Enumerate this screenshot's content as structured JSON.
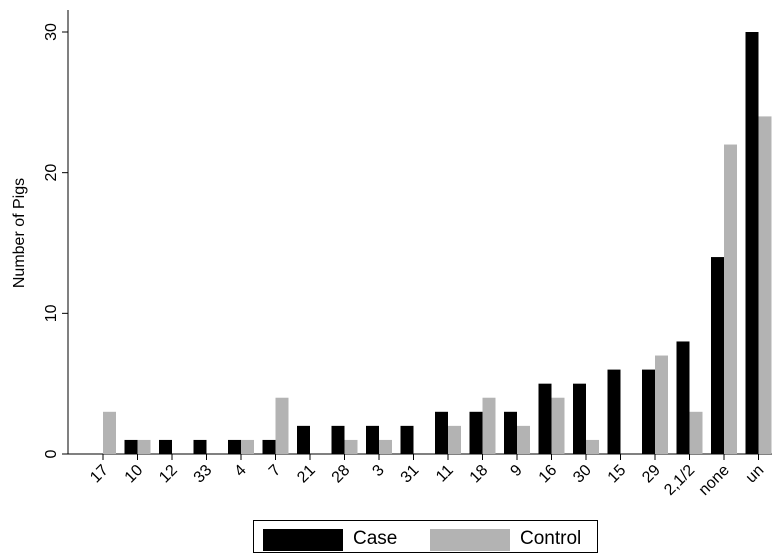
{
  "chart_data": {
    "type": "bar",
    "title": "",
    "xlabel": "",
    "ylabel": "Number of Pigs",
    "ylim": [
      0,
      30
    ],
    "yticks": [
      0,
      10,
      20,
      30
    ],
    "grid": false,
    "legend_position": "bottom",
    "categories": [
      "17",
      "10",
      "12",
      "33",
      "4",
      "7",
      "21",
      "28",
      "3",
      "31",
      "11",
      "18",
      "9",
      "16",
      "30",
      "15",
      "29",
      "2,1/2",
      "none",
      "un"
    ],
    "series": [
      {
        "name": "Case",
        "color": "#000000",
        "values": [
          0,
          1,
          1,
          1,
          1,
          1,
          2,
          2,
          2,
          2,
          3,
          3,
          3,
          5,
          5,
          6,
          6,
          8,
          14,
          30
        ]
      },
      {
        "name": "Control",
        "color": "#b3b3b3",
        "values": [
          3,
          1,
          0,
          0,
          1,
          4,
          0,
          1,
          1,
          0,
          2,
          4,
          2,
          4,
          1,
          0,
          7,
          3,
          22,
          24
        ]
      }
    ]
  }
}
